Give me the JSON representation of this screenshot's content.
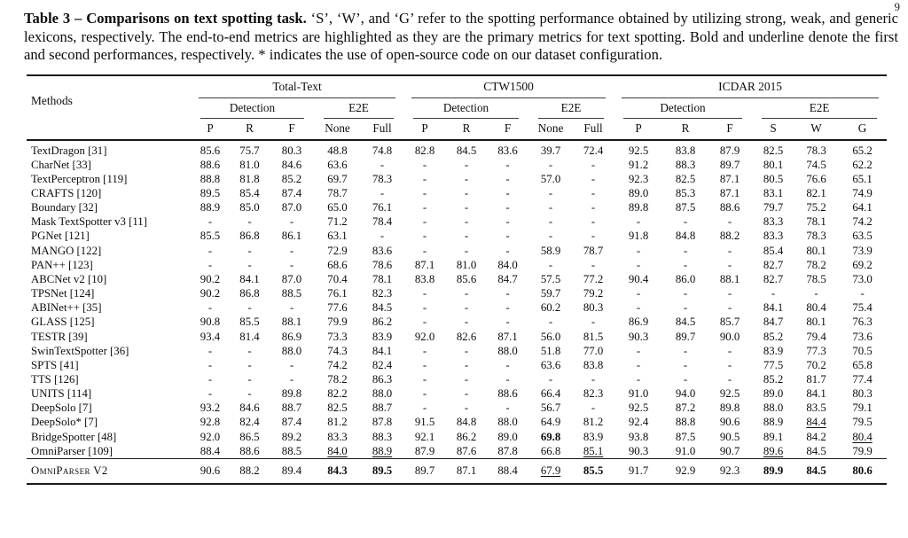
{
  "page_number": "9",
  "caption": {
    "label": "Table 3 – Comparisons on text spotting task.",
    "text": " ‘S’, ‘W’, and ‘G’ refer to the spotting performance obtained by utilizing strong, weak, and generic lexicons, respectively. The end-to-end metrics are highlighted as they are the primary metrics for text spotting. Bold and underline denote the first and second performances, respectively. * indicates the use of open-source code on our dataset configuration."
  },
  "table": {
    "methods_header": "Methods",
    "groups": [
      {
        "label": "Total-Text",
        "subgroups": [
          {
            "label": "Detection",
            "cols": [
              "P",
              "R",
              "F"
            ]
          },
          {
            "label": "E2E",
            "cols": [
              "None",
              "Full"
            ]
          }
        ]
      },
      {
        "label": "CTW1500",
        "subgroups": [
          {
            "label": "Detection",
            "cols": [
              "P",
              "R",
              "F"
            ]
          },
          {
            "label": "E2E",
            "cols": [
              "None",
              "Full"
            ]
          }
        ]
      },
      {
        "label": "ICDAR 2015",
        "subgroups": [
          {
            "label": "Detection",
            "cols": [
              "P",
              "R",
              "F"
            ]
          },
          {
            "label": "E2E",
            "cols": [
              "S",
              "W",
              "G"
            ]
          }
        ]
      }
    ],
    "rows": [
      {
        "method": "TextDragon [31]",
        "values": [
          "85.6",
          "75.7",
          "80.3",
          "48.8",
          "74.8",
          "82.8",
          "84.5",
          "83.6",
          "39.7",
          "72.4",
          "92.5",
          "83.8",
          "87.9",
          "82.5",
          "78.3",
          "65.2"
        ]
      },
      {
        "method": "CharNet [33]",
        "values": [
          "88.6",
          "81.0",
          "84.6",
          "63.6",
          "-",
          "-",
          "-",
          "-",
          "-",
          "-",
          "91.2",
          "88.3",
          "89.7",
          "80.1",
          "74.5",
          "62.2"
        ]
      },
      {
        "method": "TextPerceptron [119]",
        "values": [
          "88.8",
          "81.8",
          "85.2",
          "69.7",
          "78.3",
          "-",
          "-",
          "-",
          "57.0",
          "-",
          "92.3",
          "82.5",
          "87.1",
          "80.5",
          "76.6",
          "65.1"
        ]
      },
      {
        "method": "CRAFTS [120]",
        "values": [
          "89.5",
          "85.4",
          "87.4",
          "78.7",
          "-",
          "-",
          "-",
          "-",
          "-",
          "-",
          "89.0",
          "85.3",
          "87.1",
          "83.1",
          "82.1",
          "74.9"
        ]
      },
      {
        "method": "Boundary [32]",
        "values": [
          "88.9",
          "85.0",
          "87.0",
          "65.0",
          "76.1",
          "-",
          "-",
          "-",
          "-",
          "-",
          "89.8",
          "87.5",
          "88.6",
          "79.7",
          "75.2",
          "64.1"
        ]
      },
      {
        "method": "Mask TextSpotter v3 [11]",
        "values": [
          "-",
          "-",
          "-",
          "71.2",
          "78.4",
          "-",
          "-",
          "-",
          "-",
          "-",
          "-",
          "-",
          "-",
          "83.3",
          "78.1",
          "74.2"
        ]
      },
      {
        "method": "PGNet [121]",
        "values": [
          "85.5",
          "86.8",
          "86.1",
          "63.1",
          "-",
          "-",
          "-",
          "-",
          "-",
          "-",
          "91.8",
          "84.8",
          "88.2",
          "83.3",
          "78.3",
          "63.5"
        ]
      },
      {
        "method": "MANGO [122]",
        "values": [
          "-",
          "-",
          "-",
          "72.9",
          "83.6",
          "-",
          "-",
          "-",
          "58.9",
          "78.7",
          "-",
          "-",
          "-",
          "85.4",
          "80.1",
          "73.9"
        ]
      },
      {
        "method": "PAN++ [123]",
        "values": [
          "-",
          "-",
          "-",
          "68.6",
          "78.6",
          "87.1",
          "81.0",
          "84.0",
          "-",
          "-",
          "-",
          "-",
          "-",
          "82.7",
          "78.2",
          "69.2"
        ]
      },
      {
        "method": "ABCNet v2 [10]",
        "values": [
          "90.2",
          "84.1",
          "87.0",
          "70.4",
          "78.1",
          "83.8",
          "85.6",
          "84.7",
          "57.5",
          "77.2",
          "90.4",
          "86.0",
          "88.1",
          "82.7",
          "78.5",
          "73.0"
        ]
      },
      {
        "method": "TPSNet [124]",
        "values": [
          "90.2",
          "86.8",
          "88.5",
          "76.1",
          "82.3",
          "-",
          "-",
          "-",
          "59.7",
          "79.2",
          "-",
          "-",
          "-",
          "-",
          "-",
          "-"
        ]
      },
      {
        "method": "ABINet++ [35]",
        "values": [
          "-",
          "-",
          "-",
          "77.6",
          "84.5",
          "-",
          "-",
          "-",
          "60.2",
          "80.3",
          "-",
          "-",
          "-",
          "84.1",
          "80.4",
          "75.4"
        ]
      },
      {
        "method": "GLASS [125]",
        "values": [
          "90.8",
          "85.5",
          "88.1",
          "79.9",
          "86.2",
          "-",
          "-",
          "-",
          "-",
          "-",
          "86.9",
          "84.5",
          "85.7",
          "84.7",
          "80.1",
          "76.3"
        ]
      },
      {
        "method": "TESTR [39]",
        "values": [
          "93.4",
          "81.4",
          "86.9",
          "73.3",
          "83.9",
          "92.0",
          "82.6",
          "87.1",
          "56.0",
          "81.5",
          "90.3",
          "89.7",
          "90.0",
          "85.2",
          "79.4",
          "73.6"
        ]
      },
      {
        "method": "SwinTextSpotter [36]",
        "values": [
          "-",
          "-",
          "88.0",
          "74.3",
          "84.1",
          "-",
          "-",
          "88.0",
          "51.8",
          "77.0",
          "-",
          "-",
          "-",
          "83.9",
          "77.3",
          "70.5"
        ]
      },
      {
        "method": "SPTS [41]",
        "values": [
          "-",
          "-",
          "-",
          "74.2",
          "82.4",
          "-",
          "-",
          "-",
          "63.6",
          "83.8",
          "-",
          "-",
          "-",
          "77.5",
          "70.2",
          "65.8"
        ]
      },
      {
        "method": "TTS [126]",
        "values": [
          "-",
          "-",
          "-",
          "78.2",
          "86.3",
          "-",
          "-",
          "-",
          "-",
          "-",
          "-",
          "-",
          "-",
          "85.2",
          "81.7",
          "77.4"
        ]
      },
      {
        "method": "UNITS [114]",
        "values": [
          "-",
          "-",
          "89.8",
          "82.2",
          "88.0",
          "-",
          "-",
          "88.6",
          "66.4",
          "82.3",
          "91.0",
          "94.0",
          "92.5",
          "89.0",
          "84.1",
          "80.3"
        ]
      },
      {
        "method": "DeepSolo [7]",
        "values": [
          "93.2",
          "84.6",
          "88.7",
          "82.5",
          "88.7",
          "-",
          "-",
          "-",
          "56.7",
          "-",
          "92.5",
          "87.2",
          "89.8",
          "88.0",
          "83.5",
          "79.1"
        ]
      },
      {
        "method": "DeepSolo* [7]",
        "values": [
          "92.8",
          "82.4",
          "87.4",
          "81.2",
          "87.8",
          "91.5",
          "84.8",
          "88.0",
          "64.9",
          "81.2",
          "92.4",
          "88.8",
          "90.6",
          "88.9",
          "84.4",
          "79.5"
        ],
        "u": [
          14
        ]
      },
      {
        "method": "BridgeSpotter [48]",
        "values": [
          "92.0",
          "86.5",
          "89.2",
          "83.3",
          "88.3",
          "92.1",
          "86.2",
          "89.0",
          "69.8",
          "83.9",
          "93.8",
          "87.5",
          "90.5",
          "89.1",
          "84.2",
          "80.4"
        ],
        "b": [
          8
        ],
        "u": [
          15
        ]
      },
      {
        "method": "OmniParser [109]",
        "values": [
          "88.4",
          "88.6",
          "88.5",
          "84.0",
          "88.9",
          "87.9",
          "87.6",
          "87.8",
          "66.8",
          "85.1",
          "90.3",
          "91.0",
          "90.7",
          "89.6",
          "84.5",
          "79.9"
        ],
        "u": [
          3,
          4,
          9,
          13
        ]
      }
    ],
    "final_row": {
      "method": "OmniParser V2",
      "values": [
        "90.6",
        "88.2",
        "89.4",
        "84.3",
        "89.5",
        "89.7",
        "87.1",
        "88.4",
        "67.9",
        "85.5",
        "91.7",
        "92.9",
        "92.3",
        "89.9",
        "84.5",
        "80.6"
      ],
      "b": [
        3,
        4,
        9,
        13,
        14,
        15
      ],
      "u": [
        8
      ]
    }
  }
}
